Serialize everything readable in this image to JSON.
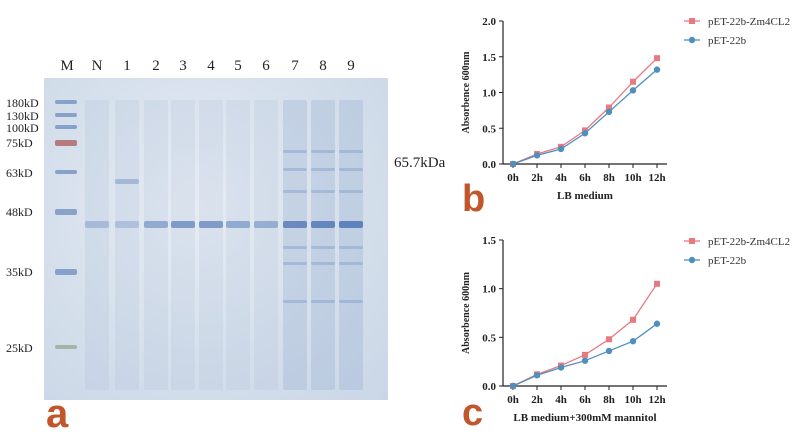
{
  "gel": {
    "lane_labels": [
      "M",
      "N",
      "1",
      "2",
      "3",
      "4",
      "5",
      "6",
      "7",
      "8",
      "9"
    ],
    "markers": [
      "180kD",
      "130kD",
      "100kD",
      "75kD",
      "63kD",
      "48kD",
      "35kD",
      "25kD"
    ],
    "target_label": "65.7kDa"
  },
  "panels": {
    "a": "a",
    "b": "b",
    "c": "c"
  },
  "colors": {
    "series1": "#e8797f",
    "series2": "#4f8fc0",
    "panel_letter": "#c0562a"
  },
  "chart_data": [
    {
      "type": "line",
      "panel": "b",
      "categories": [
        "0h",
        "2h",
        "4h",
        "6h",
        "8h",
        "10h",
        "12h"
      ],
      "series": [
        {
          "name": "pET-22b-Zm4CL2",
          "values": [
            0.0,
            0.14,
            0.24,
            0.47,
            0.79,
            1.15,
            1.48
          ]
        },
        {
          "name": "pET-22b",
          "values": [
            0.0,
            0.12,
            0.21,
            0.43,
            0.73,
            1.03,
            1.32
          ]
        }
      ],
      "xlabel": "LB medium",
      "ylabel": "Absorbence 600nm",
      "ylim": [
        0,
        2.0
      ],
      "yticks": [
        "0.0",
        "0.5",
        "1.0",
        "1.5",
        "2.0"
      ],
      "legend": "top-right"
    },
    {
      "type": "line",
      "panel": "c",
      "categories": [
        "0h",
        "2h",
        "4h",
        "6h",
        "8h",
        "10h",
        "12h"
      ],
      "series": [
        {
          "name": "pET-22b-Zm4CL2",
          "values": [
            0.0,
            0.12,
            0.21,
            0.32,
            0.48,
            0.68,
            1.05
          ]
        },
        {
          "name": "pET-22b",
          "values": [
            0.0,
            0.11,
            0.19,
            0.26,
            0.36,
            0.46,
            0.64
          ]
        }
      ],
      "xlabel": "LB medium+300mM mannitol",
      "ylabel": "Absorbence 600nm",
      "ylim": [
        0,
        1.5
      ],
      "yticks": [
        "0.0",
        "0.5",
        "1.0",
        "1.5"
      ],
      "legend": "top-right"
    }
  ]
}
